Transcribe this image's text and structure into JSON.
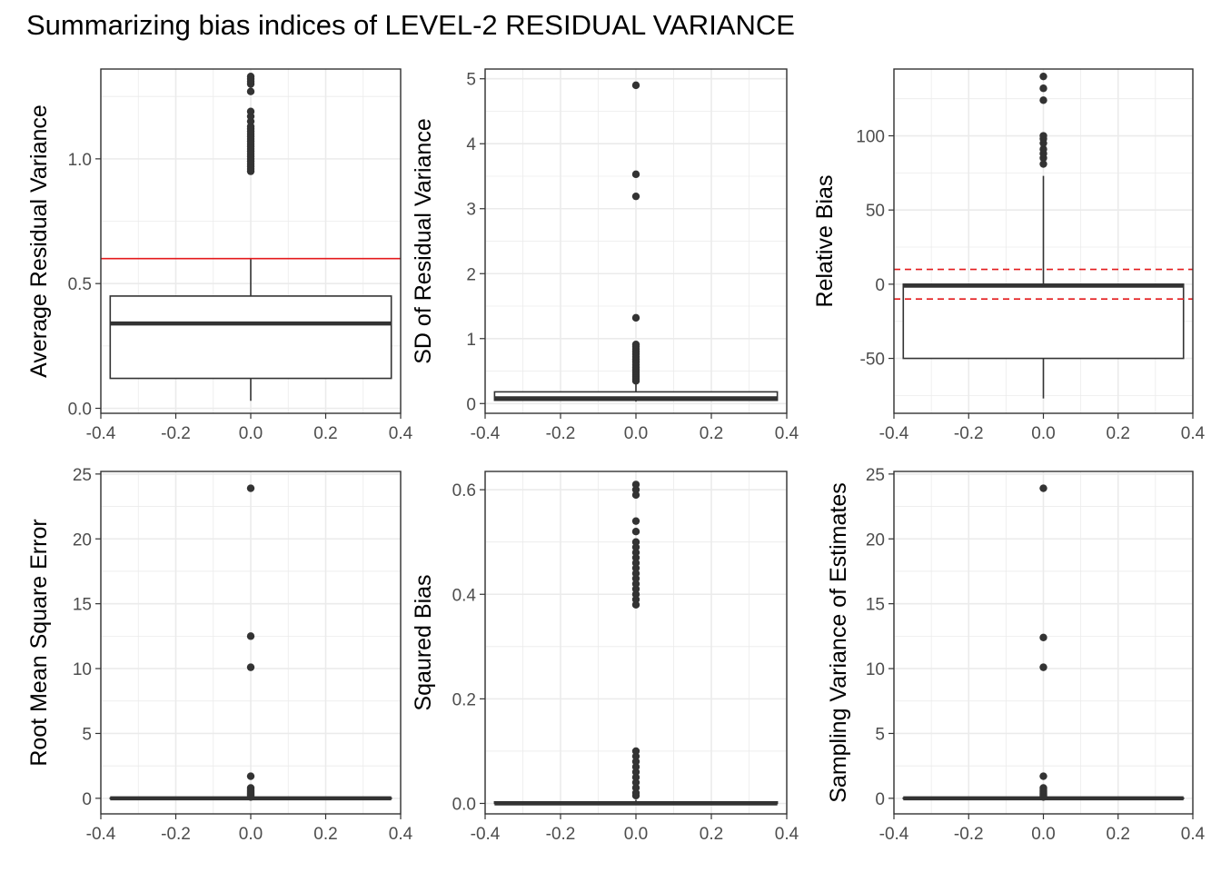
{
  "title": "Summarizing bias indices of LEVEL-2 RESIDUAL VARIANCE",
  "colors": {
    "box": "#333333",
    "grid": "#ebebeb",
    "axis": "#333333",
    "ref_line": "#e41a1c"
  },
  "chart_data": [
    {
      "type": "box",
      "ylabel": "Average Residual Variance",
      "xlim": [
        -0.4,
        0.4
      ],
      "ylim": [
        -0.02,
        1.36
      ],
      "xticks": [
        -0.4,
        -0.2,
        0.0,
        0.2,
        0.4
      ],
      "xtick_labels": [
        "-0.4",
        "-0.2",
        "0.0",
        "0.2",
        "0.4"
      ],
      "yticks": [
        0.0,
        0.5,
        1.0
      ],
      "ytick_labels": [
        "0.0",
        "0.5",
        "1.0"
      ],
      "box": {
        "q1": 0.12,
        "median": 0.34,
        "q3": 0.45,
        "whisker_low": 0.03,
        "whisker_high": 0.6,
        "half_width": 0.375
      },
      "outliers": [
        0.95,
        0.96,
        0.97,
        0.98,
        0.99,
        1.0,
        1.01,
        1.02,
        1.03,
        1.04,
        1.05,
        1.06,
        1.07,
        1.08,
        1.09,
        1.1,
        1.11,
        1.12,
        1.13,
        1.15,
        1.17,
        1.19,
        1.27,
        1.3,
        1.31,
        1.32,
        1.33
      ],
      "ref_lines": [
        {
          "y": 0.6,
          "style": "solid"
        }
      ]
    },
    {
      "type": "box",
      "ylabel": "SD of Residual Variance",
      "xlim": [
        -0.4,
        0.4
      ],
      "ylim": [
        -0.15,
        5.15
      ],
      "xticks": [
        -0.4,
        -0.2,
        0.0,
        0.2,
        0.4
      ],
      "xtick_labels": [
        "-0.4",
        "-0.2",
        "0.0",
        "0.2",
        "0.4"
      ],
      "yticks": [
        0,
        1,
        2,
        3,
        4,
        5
      ],
      "ytick_labels": [
        "0",
        "1",
        "2",
        "3",
        "4",
        "5"
      ],
      "box": {
        "q1": 0.05,
        "median": 0.08,
        "q3": 0.18,
        "whisker_low": 0.03,
        "whisker_high": 0.33,
        "half_width": 0.375
      },
      "outliers": [
        0.35,
        0.38,
        0.41,
        0.44,
        0.47,
        0.5,
        0.53,
        0.56,
        0.6,
        0.64,
        0.68,
        0.72,
        0.76,
        0.8,
        0.84,
        0.88,
        0.91,
        1.32,
        3.19,
        3.53,
        4.9
      ],
      "ref_lines": []
    },
    {
      "type": "box",
      "ylabel": "Relative Bias",
      "xlim": [
        -0.4,
        0.4
      ],
      "ylim": [
        -87,
        145
      ],
      "xticks": [
        -0.4,
        -0.2,
        0.0,
        0.2,
        0.4
      ],
      "xtick_labels": [
        "-0.4",
        "-0.2",
        "0.0",
        "0.2",
        "0.4"
      ],
      "yticks": [
        -50,
        0,
        50,
        100
      ],
      "ytick_labels": [
        "-50",
        "0",
        "50",
        "100"
      ],
      "box": {
        "q1": -50,
        "median": -1,
        "q3": 0,
        "whisker_low": -77,
        "whisker_high": 73,
        "half_width": 0.375
      },
      "outliers": [
        81,
        85,
        88,
        91,
        95,
        98,
        100,
        124,
        132,
        140
      ],
      "ref_lines": [
        {
          "y": 10,
          "style": "dashed"
        },
        {
          "y": -10,
          "style": "dashed"
        }
      ]
    },
    {
      "type": "box",
      "ylabel": "Root Mean Square Error",
      "xlim": [
        -0.4,
        0.4
      ],
      "ylim": [
        -1.2,
        25.2
      ],
      "xticks": [
        -0.4,
        -0.2,
        0.0,
        0.2,
        0.4
      ],
      "xtick_labels": [
        "-0.4",
        "-0.2",
        "0.0",
        "0.2",
        "0.4"
      ],
      "yticks": [
        0,
        5,
        10,
        15,
        20,
        25
      ],
      "ytick_labels": [
        "0",
        "5",
        "10",
        "15",
        "20",
        "25"
      ],
      "box": {
        "q1": 0.0,
        "median": 0.0,
        "q3": 0.02,
        "whisker_low": 0.0,
        "whisker_high": 0.04,
        "half_width": 0.375
      },
      "outliers": [
        0.1,
        0.2,
        0.3,
        0.4,
        0.5,
        0.6,
        0.7,
        0.8,
        1.7,
        10.1,
        12.5,
        23.9
      ],
      "ref_lines": []
    },
    {
      "type": "box",
      "ylabel": "Sqaured Bias",
      "xlim": [
        -0.4,
        0.4
      ],
      "ylim": [
        -0.02,
        0.635
      ],
      "xticks": [
        -0.4,
        -0.2,
        0.0,
        0.2,
        0.4
      ],
      "xtick_labels": [
        "-0.4",
        "-0.2",
        "0.0",
        "0.2",
        "0.4"
      ],
      "yticks": [
        0.0,
        0.2,
        0.4,
        0.6
      ],
      "ytick_labels": [
        "0.0",
        "0.2",
        "0.4",
        "0.6"
      ],
      "box": {
        "q1": 0.0,
        "median": 0.0,
        "q3": 0.003,
        "whisker_low": 0.0,
        "whisker_high": 0.007,
        "half_width": 0.375
      },
      "outliers": [
        0.015,
        0.02,
        0.03,
        0.04,
        0.05,
        0.06,
        0.07,
        0.08,
        0.09,
        0.1,
        0.38,
        0.39,
        0.4,
        0.41,
        0.42,
        0.43,
        0.44,
        0.45,
        0.46,
        0.47,
        0.48,
        0.49,
        0.5,
        0.52,
        0.54,
        0.59,
        0.6,
        0.61
      ],
      "ref_lines": []
    },
    {
      "type": "box",
      "ylabel": "Sampling Variance of Estimates",
      "xlim": [
        -0.4,
        0.4
      ],
      "ylim": [
        -1.2,
        25.2
      ],
      "xticks": [
        -0.4,
        -0.2,
        0.0,
        0.2,
        0.4
      ],
      "xtick_labels": [
        "-0.4",
        "-0.2",
        "0.0",
        "0.2",
        "0.4"
      ],
      "yticks": [
        0,
        5,
        10,
        15,
        20,
        25
      ],
      "ytick_labels": [
        "0",
        "5",
        "10",
        "15",
        "20",
        "25"
      ],
      "box": {
        "q1": 0.0,
        "median": 0.0,
        "q3": 0.02,
        "whisker_low": 0.0,
        "whisker_high": 0.04,
        "half_width": 0.375
      },
      "outliers": [
        0.1,
        0.2,
        0.3,
        0.4,
        0.5,
        0.6,
        0.7,
        0.8,
        1.7,
        10.1,
        12.4,
        23.9
      ],
      "ref_lines": []
    }
  ]
}
